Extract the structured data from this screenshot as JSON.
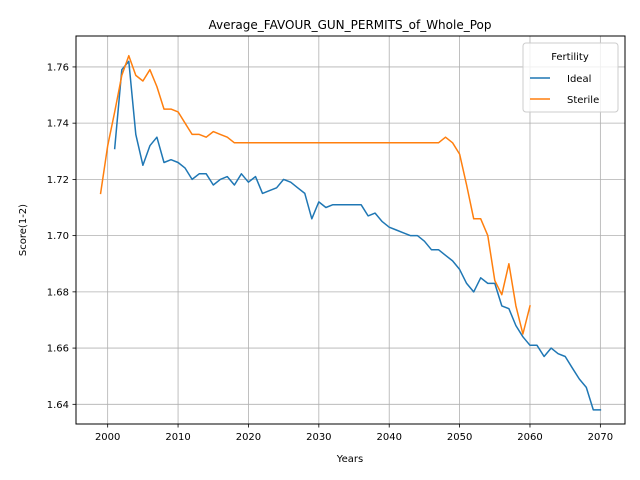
{
  "chart_data": {
    "type": "line",
    "title": "Average_FAVOUR_GUN_PERMITS_of_Whole_Pop",
    "xlabel": "Years",
    "ylabel": "Score(1-2)",
    "xlim": [
      1995.5,
      2073.5
    ],
    "ylim": [
      1.633,
      1.771
    ],
    "xticks": [
      2000,
      2010,
      2020,
      2030,
      2040,
      2050,
      2060,
      2070
    ],
    "yticks": [
      1.64,
      1.66,
      1.68,
      1.7,
      1.72,
      1.74,
      1.76
    ],
    "ytick_labels": [
      "1.64",
      "1.66",
      "1.68",
      "1.70",
      "1.72",
      "1.74",
      "1.76"
    ],
    "grid": true,
    "legend": {
      "title": "Fertility",
      "placement": "top-right"
    },
    "series": [
      {
        "name": "Ideal",
        "color": "#1f77b4",
        "x": [
          2001,
          2002,
          2003,
          2004,
          2005,
          2006,
          2007,
          2008,
          2009,
          2010,
          2011,
          2012,
          2013,
          2014,
          2015,
          2016,
          2017,
          2018,
          2019,
          2020,
          2021,
          2022,
          2023,
          2024,
          2025,
          2026,
          2027,
          2028,
          2029,
          2030,
          2031,
          2032,
          2033,
          2034,
          2035,
          2036,
          2037,
          2038,
          2039,
          2040,
          2041,
          2042,
          2043,
          2044,
          2045,
          2046,
          2047,
          2048,
          2049,
          2050,
          2051,
          2052,
          2053,
          2054,
          2055,
          2056,
          2057,
          2058,
          2059,
          2060,
          2061,
          2062,
          2063,
          2064,
          2065,
          2066,
          2067,
          2068,
          2069,
          2070
        ],
        "values": [
          1.731,
          1.759,
          1.762,
          1.736,
          1.725,
          1.732,
          1.735,
          1.726,
          1.727,
          1.726,
          1.724,
          1.72,
          1.722,
          1.722,
          1.718,
          1.72,
          1.721,
          1.718,
          1.722,
          1.719,
          1.721,
          1.715,
          1.716,
          1.717,
          1.72,
          1.719,
          1.717,
          1.715,
          1.706,
          1.712,
          1.71,
          1.711,
          1.711,
          1.711,
          1.711,
          1.711,
          1.707,
          1.708,
          1.705,
          1.703,
          1.702,
          1.701,
          1.7,
          1.7,
          1.698,
          1.695,
          1.695,
          1.693,
          1.691,
          1.688,
          1.683,
          1.68,
          1.685,
          1.683,
          1.683,
          1.675,
          1.674,
          1.668,
          1.664,
          1.661,
          1.661,
          1.657,
          1.66,
          1.658,
          1.657,
          1.653,
          1.649,
          1.646,
          1.638,
          1.638
        ]
      },
      {
        "name": "Sterile",
        "color": "#ff7f0e",
        "x": [
          1999,
          2000,
          2001,
          2002,
          2003,
          2004,
          2005,
          2006,
          2007,
          2008,
          2009,
          2010,
          2011,
          2012,
          2013,
          2014,
          2015,
          2016,
          2017,
          2018,
          2019,
          2020,
          2021,
          2022,
          2023,
          2024,
          2025,
          2026,
          2027,
          2028,
          2029,
          2030,
          2031,
          2032,
          2033,
          2034,
          2035,
          2036,
          2037,
          2038,
          2039,
          2040,
          2041,
          2042,
          2043,
          2044,
          2045,
          2046,
          2047,
          2048,
          2049,
          2050,
          2051,
          2052,
          2053,
          2054,
          2055,
          2056,
          2057,
          2058,
          2059,
          2060
        ],
        "values": [
          1.715,
          1.732,
          1.744,
          1.757,
          1.764,
          1.757,
          1.755,
          1.759,
          1.753,
          1.745,
          1.745,
          1.744,
          1.74,
          1.736,
          1.736,
          1.735,
          1.737,
          1.736,
          1.735,
          1.733,
          1.733,
          1.733,
          1.733,
          1.733,
          1.733,
          1.733,
          1.733,
          1.733,
          1.733,
          1.733,
          1.733,
          1.733,
          1.733,
          1.733,
          1.733,
          1.733,
          1.733,
          1.733,
          1.733,
          1.733,
          1.733,
          1.733,
          1.733,
          1.733,
          1.733,
          1.733,
          1.733,
          1.733,
          1.733,
          1.735,
          1.733,
          1.729,
          1.718,
          1.706,
          1.706,
          1.7,
          1.684,
          1.679,
          1.69,
          1.675,
          1.665,
          1.675
        ]
      }
    ]
  }
}
